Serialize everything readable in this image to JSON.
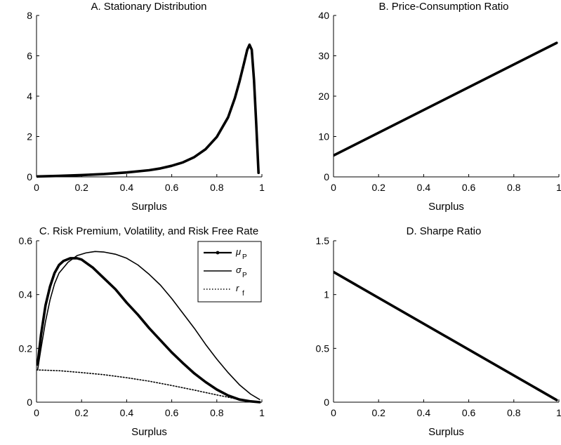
{
  "chart_data": [
    {
      "id": "A",
      "type": "line",
      "title": "A. Stationary Distribution",
      "xlabel": "Surplus",
      "ylabel": "",
      "xlim": [
        0,
        1
      ],
      "ylim": [
        0,
        8
      ],
      "xticks": [
        "0",
        "0.2",
        "0.4",
        "0.6",
        "0.8",
        "1"
      ],
      "yticks": [
        "0",
        "2",
        "4",
        "6",
        "8"
      ],
      "series": [
        {
          "style": "thick",
          "points": [
            [
              0.0,
              0.02
            ],
            [
              0.1,
              0.05
            ],
            [
              0.2,
              0.09
            ],
            [
              0.3,
              0.14
            ],
            [
              0.4,
              0.22
            ],
            [
              0.5,
              0.33
            ],
            [
              0.55,
              0.42
            ],
            [
              0.6,
              0.55
            ],
            [
              0.65,
              0.72
            ],
            [
              0.7,
              0.98
            ],
            [
              0.75,
              1.37
            ],
            [
              0.8,
              1.98
            ],
            [
              0.85,
              2.95
            ],
            [
              0.88,
              3.9
            ],
            [
              0.9,
              4.7
            ],
            [
              0.92,
              5.6
            ],
            [
              0.935,
              6.3
            ],
            [
              0.945,
              6.55
            ],
            [
              0.955,
              6.3
            ],
            [
              0.965,
              4.8
            ],
            [
              0.975,
              2.6
            ],
            [
              0.985,
              0.2
            ]
          ]
        }
      ]
    },
    {
      "id": "B",
      "type": "line",
      "title": "B. Price-Consumption Ratio",
      "xlabel": "Surplus",
      "ylabel": "",
      "xlim": [
        0,
        1
      ],
      "ylim": [
        0,
        40
      ],
      "xticks": [
        "0",
        "0.2",
        "0.4",
        "0.6",
        "0.8",
        "1"
      ],
      "yticks": [
        "0",
        "10",
        "20",
        "30",
        "40"
      ],
      "series": [
        {
          "style": "thick",
          "points": [
            [
              0.0,
              5.3
            ],
            [
              0.99,
              33.2
            ]
          ]
        }
      ]
    },
    {
      "id": "C",
      "type": "line",
      "title": "C. Risk Premium, Volatility, and Risk Free Rate",
      "xlabel": "Surplus",
      "ylabel": "",
      "xlim": [
        0,
        1
      ],
      "ylim": [
        0,
        0.6
      ],
      "xticks": [
        "0",
        "0.2",
        "0.4",
        "0.6",
        "0.8",
        "1"
      ],
      "yticks": [
        "0",
        "0.2",
        "0.4",
        "0.6"
      ],
      "legend": {
        "placement": "top-right",
        "entries": [
          {
            "symbol": "μ",
            "sub": "P",
            "style": "thick"
          },
          {
            "symbol": "σ",
            "sub": "P",
            "style": "thin"
          },
          {
            "symbol": "r",
            "sub": "f",
            "style": "dotted"
          }
        ]
      },
      "series": [
        {
          "style": "thick",
          "points": [
            [
              0.005,
              0.14
            ],
            [
              0.02,
              0.25
            ],
            [
              0.04,
              0.36
            ],
            [
              0.06,
              0.43
            ],
            [
              0.08,
              0.48
            ],
            [
              0.1,
              0.51
            ],
            [
              0.12,
              0.525
            ],
            [
              0.15,
              0.535
            ],
            [
              0.18,
              0.535
            ],
            [
              0.2,
              0.53
            ],
            [
              0.25,
              0.5
            ],
            [
              0.3,
              0.46
            ],
            [
              0.35,
              0.42
            ],
            [
              0.4,
              0.37
            ],
            [
              0.45,
              0.325
            ],
            [
              0.5,
              0.275
            ],
            [
              0.55,
              0.23
            ],
            [
              0.6,
              0.185
            ],
            [
              0.65,
              0.145
            ],
            [
              0.7,
              0.107
            ],
            [
              0.75,
              0.075
            ],
            [
              0.8,
              0.047
            ],
            [
              0.85,
              0.025
            ],
            [
              0.9,
              0.01
            ],
            [
              0.95,
              0.003
            ],
            [
              0.99,
              0.0
            ]
          ]
        },
        {
          "style": "thin",
          "points": [
            [
              0.005,
              0.12
            ],
            [
              0.02,
              0.2
            ],
            [
              0.04,
              0.3
            ],
            [
              0.06,
              0.38
            ],
            [
              0.08,
              0.44
            ],
            [
              0.1,
              0.48
            ],
            [
              0.14,
              0.52
            ],
            [
              0.18,
              0.545
            ],
            [
              0.22,
              0.555
            ],
            [
              0.26,
              0.56
            ],
            [
              0.3,
              0.558
            ],
            [
              0.35,
              0.55
            ],
            [
              0.4,
              0.535
            ],
            [
              0.45,
              0.51
            ],
            [
              0.5,
              0.475
            ],
            [
              0.55,
              0.435
            ],
            [
              0.6,
              0.385
            ],
            [
              0.65,
              0.33
            ],
            [
              0.7,
              0.275
            ],
            [
              0.75,
              0.215
            ],
            [
              0.8,
              0.16
            ],
            [
              0.85,
              0.11
            ],
            [
              0.9,
              0.065
            ],
            [
              0.95,
              0.03
            ],
            [
              0.99,
              0.01
            ]
          ]
        },
        {
          "style": "dotted",
          "points": [
            [
              0.0,
              0.12
            ],
            [
              0.1,
              0.117
            ],
            [
              0.2,
              0.11
            ],
            [
              0.3,
              0.102
            ],
            [
              0.4,
              0.091
            ],
            [
              0.5,
              0.078
            ],
            [
              0.6,
              0.062
            ],
            [
              0.7,
              0.045
            ],
            [
              0.8,
              0.027
            ],
            [
              0.9,
              0.01
            ],
            [
              0.95,
              0.004
            ],
            [
              0.99,
              0.0
            ]
          ]
        }
      ]
    },
    {
      "id": "D",
      "type": "line",
      "title": "D. Sharpe Ratio",
      "xlabel": "Surplus",
      "ylabel": "",
      "xlim": [
        0,
        1
      ],
      "ylim": [
        0,
        1.5
      ],
      "xticks": [
        "0",
        "0.2",
        "0.4",
        "0.6",
        "0.8",
        "1"
      ],
      "yticks": [
        "0",
        "0.5",
        "1",
        "1.5"
      ],
      "series": [
        {
          "style": "thick",
          "points": [
            [
              0.0,
              1.21
            ],
            [
              0.99,
              0.02
            ]
          ]
        }
      ]
    }
  ]
}
